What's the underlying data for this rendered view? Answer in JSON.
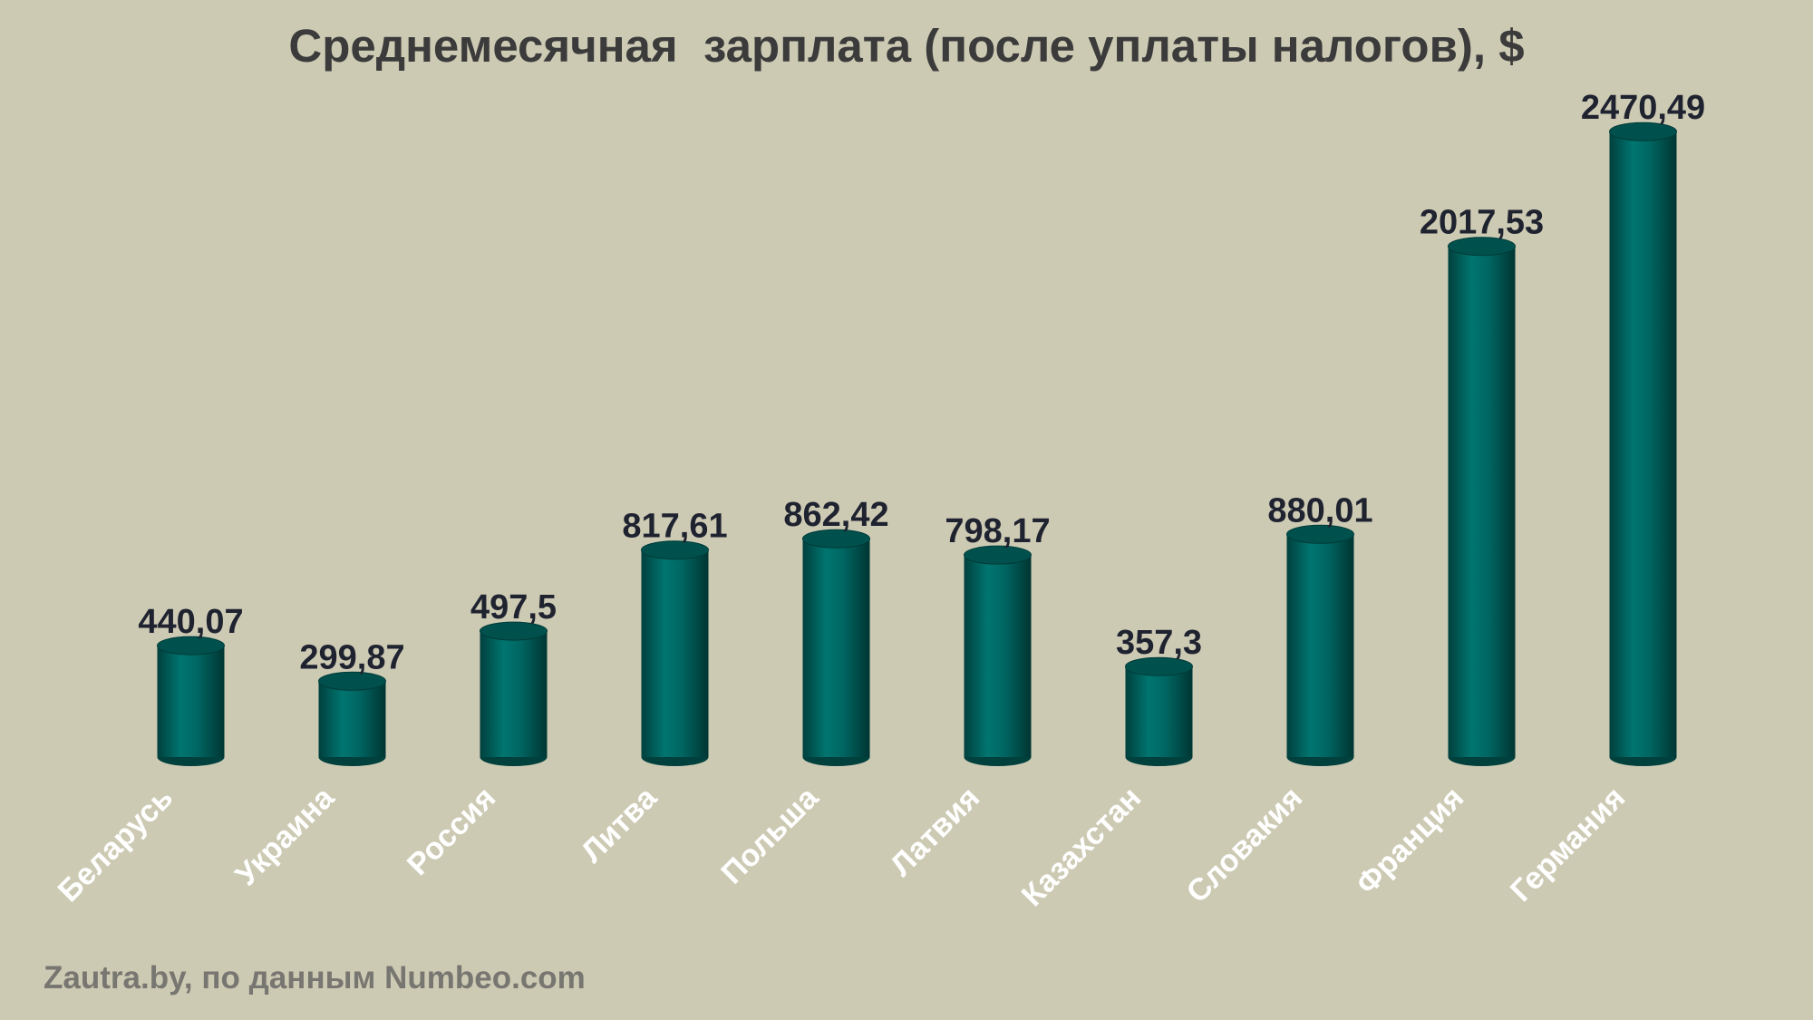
{
  "chart_data": {
    "type": "bar",
    "title": "Среднемесячная  зарплата (после уплаты налогов), $",
    "source": "Zautra.by, по данным Numbeo.com",
    "categories": [
      "Беларусь",
      "Украина",
      "Россия",
      "Литва",
      "Польша",
      "Латвия",
      "Казахстан",
      "Словакия",
      "Франция",
      "Германия"
    ],
    "values": [
      440.07,
      299.87,
      497.5,
      817.61,
      862.42,
      798.17,
      357.3,
      880.01,
      2017.53,
      2470.49
    ],
    "value_labels": [
      "440,07",
      "299,87",
      "497,5",
      "817,61",
      "862,42",
      "798,17",
      "357,3",
      "880,01",
      "2017,53",
      "2470,49"
    ],
    "color": "#006a66"
  }
}
